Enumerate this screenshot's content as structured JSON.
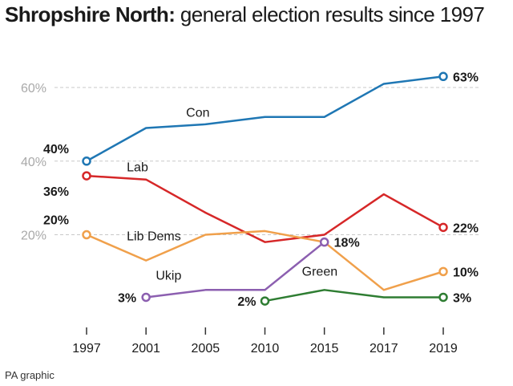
{
  "title": {
    "bold": "Shropshire North:",
    "rest": " general election results since 1997"
  },
  "credit": "PA graphic",
  "chart_data": {
    "type": "line",
    "title": "Shropshire North: general election results since 1997",
    "x": [
      1997,
      2001,
      2005,
      2010,
      2015,
      2017,
      2019
    ],
    "x_tick_labels": [
      "1997",
      "2001",
      "2005",
      "2010",
      "2015",
      "2017",
      "2019"
    ],
    "y_tick_labels": [
      "60%",
      "40%",
      "20%"
    ],
    "y_ticks": [
      60,
      40,
      20
    ],
    "ylim": [
      -3,
      72
    ],
    "grid": "dashed horizontal",
    "series": [
      {
        "name": "Con",
        "color": "#1f77b4",
        "values": [
          40,
          49,
          50,
          52,
          52,
          61,
          63
        ],
        "label_year": 2001,
        "start_label": "40%",
        "end_label": "63%"
      },
      {
        "name": "Lab",
        "color": "#d62728",
        "values": [
          36,
          35,
          26,
          18,
          20,
          31,
          22
        ],
        "label_year": 2001,
        "start_label": "36%",
        "end_label": "22%"
      },
      {
        "name": "Lib Dems",
        "color": "#f0a04b",
        "values": [
          20,
          13,
          20,
          21,
          18,
          5,
          10
        ],
        "label_year": 2001,
        "start_label": "20%",
        "end_label": "10%"
      },
      {
        "name": "Ukip",
        "color": "#8c5fb0",
        "x": [
          2001,
          2005,
          2010,
          2015
        ],
        "values": [
          3,
          5,
          5,
          18
        ],
        "label_year": 2005,
        "start_label": "3%",
        "end_label": "18%"
      },
      {
        "name": "Green",
        "color": "#2e7d32",
        "x": [
          2010,
          2015,
          2017,
          2019
        ],
        "values": [
          2,
          5,
          3,
          3
        ],
        "label_year": 2015,
        "start_label": "2%",
        "end_label": "3%"
      }
    ]
  }
}
